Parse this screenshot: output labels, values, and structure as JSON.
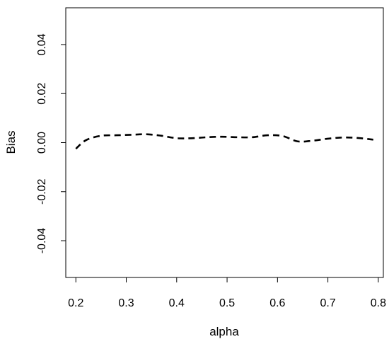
{
  "chart_data": {
    "type": "line",
    "xlabel": "alpha",
    "ylabel": "Bias",
    "xlim": [
      0.18,
      0.81
    ],
    "ylim": [
      -0.055,
      0.055
    ],
    "x_ticks": [
      0.2,
      0.3,
      0.4,
      0.5,
      0.6,
      0.7,
      0.8
    ],
    "x_tick_labels": [
      "0.2",
      "0.3",
      "0.4",
      "0.5",
      "0.6",
      "0.7",
      "0.8"
    ],
    "y_ticks": [
      -0.04,
      -0.02,
      0.0,
      0.02,
      0.04
    ],
    "y_tick_labels": [
      "-0.04",
      "-0.02",
      "0.00",
      "0.02",
      "0.04"
    ],
    "grid": false,
    "legend": "none",
    "series": [
      {
        "line_style": "dashed",
        "color": "#000000",
        "x": [
          0.2,
          0.22,
          0.25,
          0.28,
          0.31,
          0.34,
          0.37,
          0.4,
          0.43,
          0.46,
          0.49,
          0.52,
          0.55,
          0.58,
          0.61,
          0.64,
          0.67,
          0.7,
          0.73,
          0.76,
          0.79
        ],
        "y": [
          -0.0025,
          0.001,
          0.0028,
          0.003,
          0.0032,
          0.0034,
          0.0028,
          0.0018,
          0.0018,
          0.0022,
          0.0024,
          0.0022,
          0.0022,
          0.003,
          0.0027,
          0.0005,
          0.0008,
          0.0016,
          0.0021,
          0.0019,
          0.0012
        ]
      }
    ]
  }
}
